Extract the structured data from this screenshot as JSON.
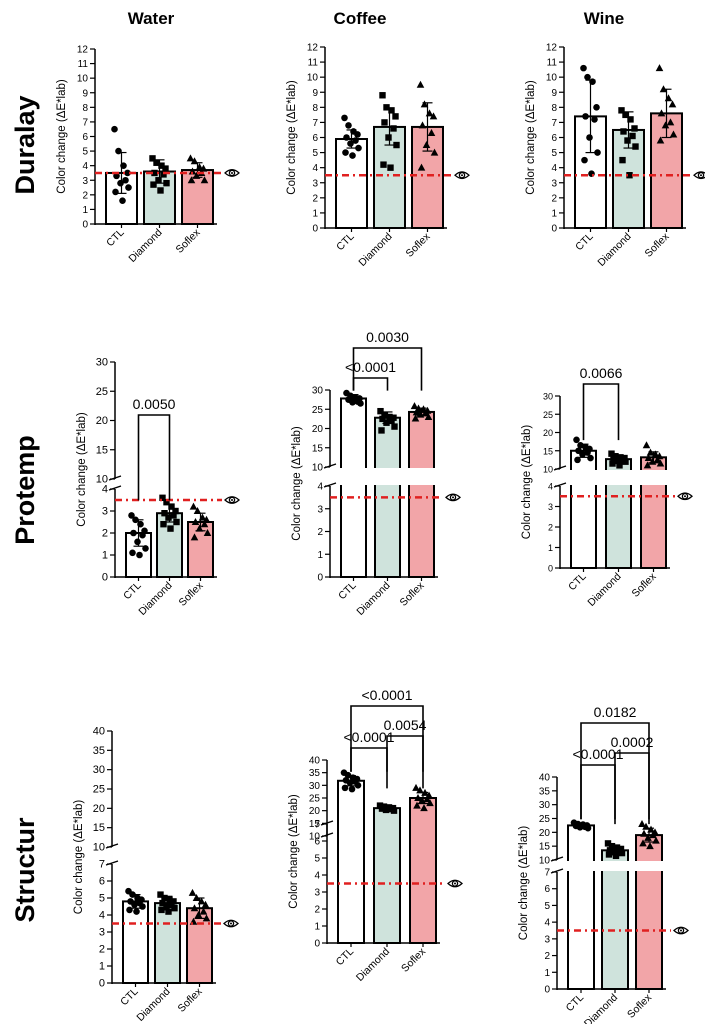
{
  "columns": [
    "Water",
    "Coffee",
    "Wine"
  ],
  "rows": [
    "Duralay",
    "Protemp",
    "Structur"
  ],
  "axis_label": "Color change (ΔE*lab)",
  "categories": [
    "CTL",
    "Diamond",
    "Soflex"
  ],
  "colors": {
    "CTL": "#ffffff",
    "Diamond": "#cfe3dc",
    "Soflex": "#f2a5a8",
    "threshold": "#e02020"
  },
  "icons": {
    "threshold": "eye-icon"
  },
  "chart_data": [
    {
      "id": "duralay-water",
      "type": "bar",
      "title": "Water",
      "row": "Duralay",
      "categories": [
        "CTL",
        "Diamond",
        "Soflex"
      ],
      "values": [
        3.5,
        3.6,
        3.7
      ],
      "errors": [
        1.4,
        0.8,
        0.5
      ],
      "threshold": 3.5,
      "ylim": [
        0,
        12
      ],
      "ticks": [
        "0",
        "1",
        "2",
        "3",
        "4",
        "5",
        "6",
        "7",
        "8",
        "9",
        "10",
        "11",
        "12"
      ],
      "break": false,
      "points": [
        [
          6.5,
          5.0,
          4.0,
          3.5,
          3.3,
          3.0,
          2.8,
          2.5,
          2.2,
          1.6
        ],
        [
          4.5,
          4.2,
          4.0,
          3.8,
          3.5,
          3.4,
          3.0,
          2.8,
          2.7,
          2.3
        ],
        [
          4.5,
          4.3,
          3.9,
          3.8,
          3.6,
          3.5,
          3.3,
          3.0,
          3.0
        ]
      ],
      "comparisons": []
    },
    {
      "id": "duralay-coffee",
      "type": "bar",
      "title": "Coffee",
      "row": "Duralay",
      "categories": [
        "CTL",
        "Diamond",
        "Soflex"
      ],
      "values": [
        5.9,
        6.7,
        6.7
      ],
      "errors": [
        0.6,
        1.2,
        1.6
      ],
      "threshold": 3.5,
      "ylim": [
        0,
        12
      ],
      "ticks": [
        "0",
        "1",
        "2",
        "3",
        "4",
        "5",
        "6",
        "7",
        "8",
        "9",
        "10",
        "11",
        "12"
      ],
      "break": false,
      "points": [
        [
          7.3,
          6.8,
          6.4,
          6.2,
          6.0,
          5.8,
          5.6,
          5.3,
          5.0,
          4.8
        ],
        [
          8.8,
          8.0,
          7.8,
          7.4,
          7.0,
          6.6,
          6.0,
          5.5,
          4.2,
          4.0
        ],
        [
          9.5,
          8.2,
          7.6,
          7.4,
          6.8,
          6.3,
          5.5,
          5.0,
          4.0
        ]
      ],
      "comparisons": []
    },
    {
      "id": "duralay-wine",
      "type": "bar",
      "title": "Wine",
      "row": "Duralay",
      "categories": [
        "CTL",
        "Diamond",
        "Soflex"
      ],
      "values": [
        7.4,
        6.5,
        7.6
      ],
      "errors": [
        2.4,
        1.2,
        1.6
      ],
      "threshold": 3.5,
      "ylim": [
        0,
        12
      ],
      "ticks": [
        "0",
        "1",
        "2",
        "3",
        "4",
        "5",
        "6",
        "7",
        "8",
        "9",
        "10",
        "11",
        "12"
      ],
      "break": false,
      "points": [
        [
          10.6,
          10.0,
          9.7,
          8.0,
          7.4,
          7.2,
          6.0,
          5.0,
          4.5,
          3.6
        ],
        [
          7.8,
          7.5,
          7.2,
          6.6,
          6.4,
          6.1,
          5.8,
          5.4,
          4.5,
          3.5
        ],
        [
          10.6,
          9.2,
          8.6,
          8.2,
          7.6,
          7.0,
          6.8,
          6.2,
          5.8
        ]
      ],
      "comparisons": []
    },
    {
      "id": "protemp-water",
      "type": "bar",
      "title": "Water",
      "row": "Protemp",
      "categories": [
        "CTL",
        "Diamond",
        "Soflex"
      ],
      "values": [
        2.0,
        2.9,
        2.5
      ],
      "errors": [
        0.6,
        0.4,
        0.4
      ],
      "threshold": 3.5,
      "ylim": [
        0,
        30
      ],
      "ticks": [
        "0",
        "1",
        "2",
        "3",
        "4",
        "10",
        "15",
        "20",
        "25",
        "30"
      ],
      "break": true,
      "break_low": 4,
      "break_high": 10,
      "points": [
        [
          2.8,
          2.6,
          2.4,
          2.1,
          2.0,
          1.9,
          1.6,
          1.3,
          1.1,
          1.0
        ],
        [
          3.6,
          3.4,
          3.2,
          3.0,
          2.9,
          2.8,
          2.7,
          2.5,
          2.4,
          2.2
        ],
        [
          3.2,
          3.0,
          2.7,
          2.6,
          2.5,
          2.4,
          2.2,
          2.0,
          1.8
        ]
      ],
      "comparisons": [
        {
          "from": 0,
          "to": 1,
          "label": "0.0050"
        }
      ]
    },
    {
      "id": "protemp-coffee",
      "type": "bar",
      "title": "Coffee",
      "row": "Protemp",
      "categories": [
        "CTL",
        "Diamond",
        "Soflex"
      ],
      "values": [
        27.8,
        22.8,
        24.3
      ],
      "errors": [
        1.0,
        1.5,
        1.0
      ],
      "threshold": 3.5,
      "ylim": [
        0,
        30
      ],
      "ticks": [
        "0",
        "1",
        "2",
        "3",
        "4",
        "10",
        "15",
        "20",
        "25",
        "30"
      ],
      "break": true,
      "break_low": 4,
      "break_high": 10,
      "points": [
        [
          29.2,
          28.5,
          28.0,
          27.8,
          27.5,
          27.0,
          26.8,
          26.5
        ],
        [
          24.5,
          23.5,
          23.0,
          22.8,
          22.5,
          22.0,
          21.5,
          20.5,
          19.5
        ],
        [
          25.8,
          25.2,
          25.0,
          24.6,
          24.2,
          24.0,
          23.6,
          23.0,
          22.6
        ]
      ],
      "comparisons": [
        {
          "from": 0,
          "to": 1,
          "label": "<0.0001"
        },
        {
          "from": 0,
          "to": 2,
          "label": "0.0030"
        }
      ]
    },
    {
      "id": "protemp-wine",
      "type": "bar",
      "title": "Wine",
      "row": "Protemp",
      "categories": [
        "CTL",
        "Diamond",
        "Soflex"
      ],
      "values": [
        15.0,
        12.7,
        13.2
      ],
      "errors": [
        1.8,
        1.0,
        1.5
      ],
      "threshold": 3.5,
      "ylim": [
        0,
        30
      ],
      "ticks": [
        "0",
        "1",
        "2",
        "3",
        "4",
        "10",
        "15",
        "20",
        "25",
        "30"
      ],
      "break": true,
      "break_low": 4,
      "break_high": 10,
      "points": [
        [
          18.0,
          16.5,
          16.0,
          15.5,
          15.0,
          14.5,
          14.0,
          13.0,
          12.5
        ],
        [
          14.2,
          13.5,
          13.2,
          13.0,
          12.8,
          12.6,
          12.2,
          12.0,
          11.5,
          11.0
        ],
        [
          16.5,
          14.5,
          14.0,
          13.5,
          13.0,
          12.5,
          12.0,
          11.5,
          11.0
        ]
      ],
      "comparisons": [
        {
          "from": 0,
          "to": 1,
          "label": "0.0066"
        }
      ]
    },
    {
      "id": "structur-water",
      "type": "bar",
      "title": "Water",
      "row": "Structur",
      "categories": [
        "CTL",
        "Diamond",
        "Soflex"
      ],
      "values": [
        4.8,
        4.7,
        4.4
      ],
      "errors": [
        0.4,
        0.4,
        0.6
      ],
      "threshold": 3.5,
      "ylim": [
        0,
        40
      ],
      "ticks": [
        "0",
        "1",
        "2",
        "3",
        "4",
        "5",
        "6",
        "7",
        "10",
        "15",
        "20",
        "25",
        "30",
        "35",
        "40"
      ],
      "break": true,
      "break_low": 7,
      "break_high": 10,
      "points": [
        [
          5.4,
          5.2,
          5.0,
          4.9,
          4.8,
          4.7,
          4.6,
          4.5,
          4.3,
          4.2
        ],
        [
          5.2,
          5.0,
          4.9,
          4.8,
          4.7,
          4.6,
          4.5,
          4.4,
          4.3,
          4.2
        ],
        [
          5.3,
          5.0,
          4.8,
          4.6,
          4.4,
          4.2,
          4.0,
          3.8,
          3.6
        ]
      ],
      "comparisons": []
    },
    {
      "id": "structur-coffee",
      "type": "bar",
      "title": "Coffee",
      "row": "Structur",
      "categories": [
        "CTL",
        "Diamond",
        "Soflex"
      ],
      "values": [
        31.8,
        21.0,
        25.0
      ],
      "errors": [
        2.0,
        0.8,
        2.2
      ],
      "threshold": 3.5,
      "ylim": [
        0,
        40
      ],
      "ticks": [
        "0",
        "1",
        "2",
        "3",
        "4",
        "5",
        "6",
        "7",
        "10",
        "15",
        "20",
        "25",
        "30",
        "35",
        "40"
      ],
      "break": true,
      "break_low": 7,
      "break_high": 10,
      "points": [
        [
          35.0,
          34.0,
          33.0,
          32.5,
          32.0,
          31.5,
          31.0,
          30.0,
          29.0,
          28.5
        ],
        [
          22.0,
          21.6,
          21.3,
          21.0,
          20.8,
          20.6,
          20.3,
          20.0
        ],
        [
          29.0,
          28.0,
          27.0,
          26.0,
          25.0,
          24.5,
          24.0,
          23.0,
          22.0,
          21.0
        ]
      ],
      "comparisons": [
        {
          "from": 0,
          "to": 1,
          "label": "<0.0001"
        },
        {
          "from": 1,
          "to": 2,
          "label": "0.0054"
        },
        {
          "from": 0,
          "to": 2,
          "label": "<0.0001"
        }
      ]
    },
    {
      "id": "structur-wine",
      "type": "bar",
      "title": "Wine",
      "row": "Structur",
      "categories": [
        "CTL",
        "Diamond",
        "Soflex"
      ],
      "values": [
        22.5,
        13.5,
        19.0
      ],
      "errors": [
        0.8,
        1.5,
        2.5
      ],
      "threshold": 3.5,
      "ylim": [
        0,
        40
      ],
      "ticks": [
        "0",
        "1",
        "2",
        "3",
        "4",
        "5",
        "6",
        "7",
        "10",
        "15",
        "20",
        "25",
        "30",
        "35",
        "40"
      ],
      "break": true,
      "break_low": 7,
      "break_high": 10,
      "points": [
        [
          23.5,
          23.0,
          22.8,
          22.5,
          22.3,
          22.0,
          21.8,
          21.5
        ],
        [
          16.0,
          15.0,
          14.5,
          14.0,
          13.5,
          13.2,
          12.8,
          12.5,
          12.0,
          11.5
        ],
        [
          23.0,
          22.0,
          21.0,
          20.0,
          19.5,
          19.0,
          18.0,
          17.0,
          16.0,
          15.0
        ]
      ],
      "comparisons": [
        {
          "from": 0,
          "to": 1,
          "label": "<0.0001"
        },
        {
          "from": 1,
          "to": 2,
          "label": "0.0002"
        },
        {
          "from": 0,
          "to": 2,
          "label": "0.0182"
        }
      ]
    }
  ]
}
